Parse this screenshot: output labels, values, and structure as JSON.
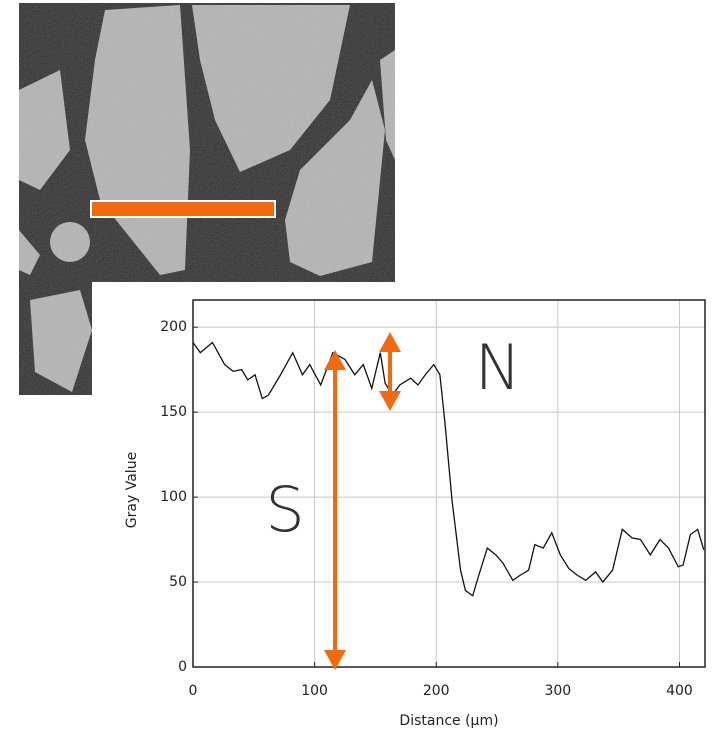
{
  "chart_data": {
    "type": "line",
    "xlabel": "Distance (µm)",
    "ylabel": "Gray Value",
    "annotations": [
      "S",
      "N"
    ],
    "color": "#111111",
    "grid": true,
    "xlim": [
      0,
      421
    ],
    "ylim": [
      0,
      216
    ],
    "xticks": [
      0,
      100,
      200,
      300,
      400
    ],
    "yticks": [
      0,
      50,
      100,
      150,
      200
    ],
    "x": [
      0,
      6,
      16,
      26,
      33,
      40,
      45,
      51,
      57,
      62,
      72,
      82,
      90,
      96,
      105,
      115,
      125,
      133,
      140,
      147,
      154,
      158,
      164,
      170,
      179,
      185,
      191,
      198,
      203,
      207,
      213,
      220,
      224,
      230,
      235,
      242,
      249,
      255,
      263,
      269,
      276,
      281,
      288,
      295,
      302,
      309,
      316,
      323,
      331,
      337,
      345,
      353,
      361,
      368,
      376,
      384,
      391,
      399,
      403,
      409,
      415,
      420
    ],
    "values": [
      191,
      185,
      191,
      178,
      174,
      175,
      169,
      172,
      158,
      160,
      172,
      185,
      172,
      178,
      166,
      185,
      181,
      172,
      178,
      164,
      185,
      167,
      160,
      166,
      170,
      166,
      172,
      178,
      172,
      145,
      98,
      57,
      45,
      42,
      54,
      70,
      66,
      61,
      51,
      54,
      57,
      72,
      70,
      79,
      66,
      58,
      54,
      51,
      56,
      50,
      57,
      81,
      76,
      75,
      66,
      75,
      70,
      59,
      60,
      78,
      81,
      69
    ]
  }
}
